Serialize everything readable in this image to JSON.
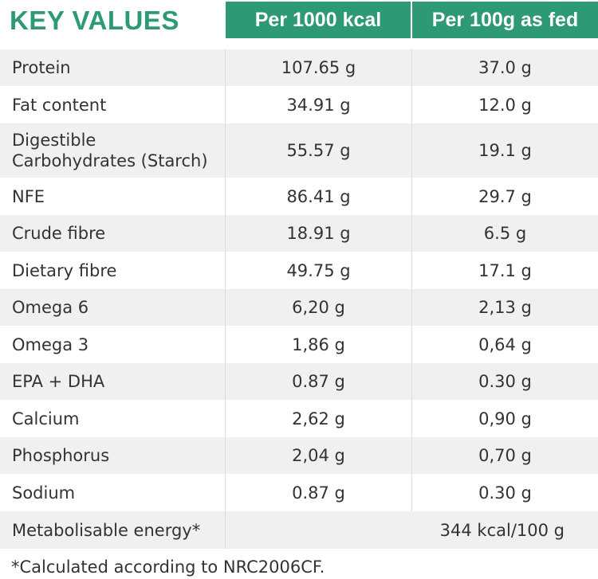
{
  "header": {
    "title": "KEY VALUES",
    "col1": "Per 1000 kcal",
    "col2": "Per 100g as fed"
  },
  "rows": [
    {
      "label": "Protein",
      "per1000": "107.65 g",
      "per100": "37.0 g"
    },
    {
      "label": "Fat content",
      "per1000": "34.91 g",
      "per100": "12.0 g"
    },
    {
      "label": "Digestible Carbohydrates (Starch)",
      "per1000": "55.57 g",
      "per100": "19.1 g"
    },
    {
      "label": "NFE",
      "per1000": "86.41 g",
      "per100": "29.7 g"
    },
    {
      "label": "Crude fibre",
      "per1000": "18.91 g",
      "per100": "6.5 g"
    },
    {
      "label": "Dietary fibre",
      "per1000": "49.75 g",
      "per100": "17.1 g"
    },
    {
      "label": "Omega 6",
      "per1000": "6,20 g",
      "per100": "2,13 g"
    },
    {
      "label": "Omega 3",
      "per1000": "1,86 g",
      "per100": "0,64 g"
    },
    {
      "label": "EPA + DHA",
      "per1000": "0.87 g",
      "per100": "0.30 g"
    },
    {
      "label": "Calcium",
      "per1000": "2,62 g",
      "per100": "0,90 g"
    },
    {
      "label": "Phosphorus",
      "per1000": "2,04 g",
      "per100": "0,70 g"
    },
    {
      "label": "Sodium",
      "per1000": "0.87 g",
      "per100": "0.30 g"
    }
  ],
  "energy": {
    "label": "Metabolisable energy*",
    "value": "344 kcal/100 g"
  },
  "footnote": "*Calculated according to NRC2006CF.",
  "colors": {
    "accent": "#2e9a73",
    "shade": "#f0f0f0",
    "text": "#333333"
  }
}
